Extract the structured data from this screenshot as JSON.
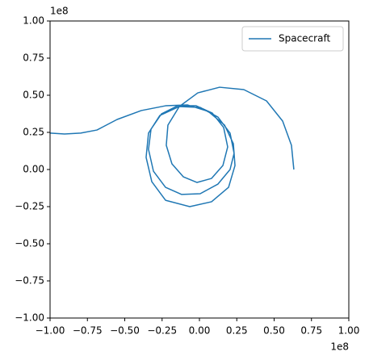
{
  "chart_data": {
    "type": "line",
    "x_offset_label": "1e8",
    "y_offset_label": "1e8",
    "legend": "upper right",
    "grid": false,
    "xlim": [
      -1.0,
      1.0
    ],
    "ylim": [
      -1.0,
      1.0
    ],
    "xticks": [
      {
        "value": -1.0,
        "label": "−1.00"
      },
      {
        "value": -0.75,
        "label": "−0.75"
      },
      {
        "value": -0.5,
        "label": "−0.50"
      },
      {
        "value": -0.25,
        "label": "−0.25"
      },
      {
        "value": 0,
        "label": "0.00"
      },
      {
        "value": 0.25,
        "label": "0.25"
      },
      {
        "value": 0.5,
        "label": "0.50"
      },
      {
        "value": 0.75,
        "label": "0.75"
      },
      {
        "value": 1.0,
        "label": "1.00"
      }
    ],
    "yticks": [
      {
        "value": -1.0,
        "label": "−1.00"
      },
      {
        "value": -0.75,
        "label": "−0.75"
      },
      {
        "value": -0.5,
        "label": "−0.50"
      },
      {
        "value": -0.25,
        "label": "−0.25"
      },
      {
        "value": 0,
        "label": "0.00"
      },
      {
        "value": 0.25,
        "label": "0.25"
      },
      {
        "value": 0.5,
        "label": "0.50"
      },
      {
        "value": 0.75,
        "label": "0.75"
      },
      {
        "value": 1.0,
        "label": "1.00"
      }
    ],
    "series": [
      {
        "name": "Spacecraft",
        "color": "#1f77b4",
        "x": [
          0.632,
          0.616,
          0.557,
          0.449,
          0.297,
          0.135,
          -0.011,
          -0.135,
          -0.211,
          -0.222,
          -0.184,
          -0.108,
          -0.016,
          0.081,
          0.157,
          0.189,
          0.162,
          0.086,
          -0.022,
          -0.146,
          -0.254,
          -0.324,
          -0.341,
          -0.308,
          -0.227,
          -0.119,
          0.005,
          0.124,
          0.205,
          0.232,
          0.205,
          0.124,
          0.005,
          -0.135,
          -0.265,
          -0.341,
          -0.357,
          -0.319,
          -0.227,
          -0.065,
          0.081,
          0.195,
          0.238,
          0.227,
          0.168,
          0.059,
          -0.081,
          -0.227,
          -0.389,
          -0.551,
          -0.686,
          -0.795,
          -0.903,
          -1.0
        ],
        "values": [
          0,
          0.163,
          0.326,
          0.462,
          0.538,
          0.554,
          0.516,
          0.424,
          0.299,
          0.163,
          0.038,
          -0.049,
          -0.087,
          -0.06,
          0.027,
          0.152,
          0.283,
          0.38,
          0.429,
          0.429,
          0.375,
          0.272,
          0.136,
          -0.011,
          -0.12,
          -0.168,
          -0.163,
          -0.098,
          0,
          0.109,
          0.245,
          0.353,
          0.418,
          0.424,
          0.364,
          0.245,
          0.082,
          -0.082,
          -0.207,
          -0.25,
          -0.217,
          -0.12,
          0.027,
          0.174,
          0.299,
          0.391,
          0.435,
          0.429,
          0.397,
          0.337,
          0.266,
          0.245,
          0.239,
          0.245
        ]
      }
    ]
  }
}
